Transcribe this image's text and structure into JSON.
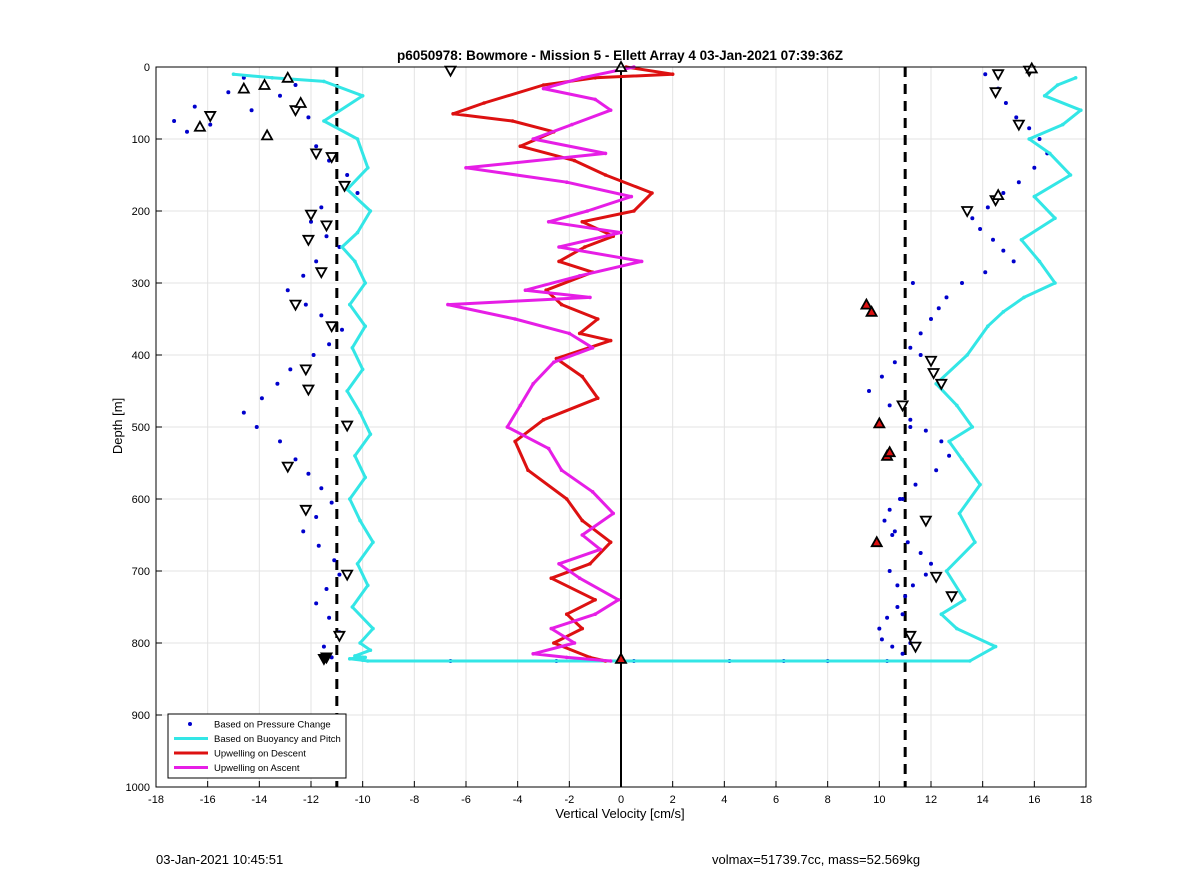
{
  "chart_data": {
    "type": "scatter",
    "title": "p6050978: Bowmore - Mission 5 - Ellett Array 4 03-Jan-2021 07:39:36Z",
    "xlabel": "Vertical Velocity [cm/s]",
    "ylabel": "Depth [m]",
    "xlim": [
      -18,
      18
    ],
    "ylim": [
      0,
      1000
    ],
    "y_reversed": true,
    "grid": true,
    "xticks": [
      -18,
      -16,
      -14,
      -12,
      -10,
      -8,
      -6,
      -4,
      -2,
      0,
      2,
      4,
      6,
      8,
      10,
      12,
      14,
      16,
      18
    ],
    "yticks": [
      0,
      100,
      200,
      300,
      400,
      500,
      600,
      700,
      800,
      900,
      1000
    ],
    "legend_position": "bottom-left",
    "reference_lines": {
      "vertical_dashed": [
        -11,
        11
      ],
      "vertical_solid": [
        0
      ]
    },
    "series": [
      {
        "name": "Based on Pressure Change",
        "style": "dots",
        "color": "#0000cc",
        "x": [
          -14.6,
          -15.2,
          -16.5,
          -17.3,
          -16.8,
          -15.9,
          -14.3,
          -13.2,
          -12.6,
          -12.1,
          -11.8,
          -11.3,
          -10.6,
          -10.2,
          -11.6,
          -12.0,
          -11.4,
          -10.9,
          -11.8,
          -12.3,
          -12.9,
          -12.2,
          -11.6,
          -10.8,
          -11.3,
          -11.9,
          -12.8,
          -13.3,
          -13.9,
          -14.6,
          -14.1,
          -13.2,
          -12.6,
          -12.1,
          -11.6,
          -11.2,
          -11.8,
          -12.3,
          -11.7,
          -11.1,
          -10.9,
          -11.4,
          -11.8,
          -11.3,
          -10.9,
          -11.5,
          -11.2,
          14.1,
          14.6,
          14.9,
          15.3,
          15.8,
          16.2,
          16.5,
          16.0,
          15.4,
          14.8,
          14.2,
          13.6,
          13.9,
          14.4,
          14.8,
          15.2,
          14.1,
          13.2,
          12.6,
          12.3,
          12.0,
          11.6,
          11.2,
          10.6,
          10.1,
          9.6,
          10.4,
          11.2,
          11.8,
          12.4,
          12.7,
          12.2,
          11.4,
          10.9,
          10.4,
          10.2,
          10.6,
          11.1,
          11.6,
          12.0,
          11.8,
          11.3,
          11.0,
          10.7,
          10.3,
          10.0,
          10.1,
          10.5,
          10.9,
          11.3,
          11.6,
          11.2,
          10.8,
          10.5,
          10.4,
          10.7,
          10.9,
          11.2,
          -6.6,
          -2.5,
          0.5,
          4.2,
          6.3,
          8.0,
          10.3
        ],
        "y": [
          15,
          35,
          55,
          75,
          90,
          80,
          60,
          40,
          25,
          70,
          110,
          130,
          150,
          175,
          195,
          215,
          235,
          250,
          270,
          290,
          310,
          330,
          345,
          365,
          385,
          400,
          420,
          440,
          460,
          480,
          500,
          520,
          545,
          565,
          585,
          605,
          625,
          645,
          665,
          685,
          705,
          725,
          745,
          765,
          785,
          805,
          820,
          10,
          30,
          50,
          70,
          85,
          100,
          120,
          140,
          160,
          175,
          195,
          210,
          225,
          240,
          255,
          270,
          285,
          300,
          320,
          335,
          350,
          370,
          390,
          410,
          430,
          450,
          470,
          490,
          505,
          520,
          540,
          560,
          580,
          600,
          615,
          630,
          645,
          660,
          675,
          690,
          705,
          720,
          735,
          750,
          765,
          780,
          795,
          805,
          815,
          300,
          400,
          500,
          600,
          650,
          700,
          720,
          760,
          800,
          825,
          825,
          825,
          825,
          825,
          825,
          825
        ]
      },
      {
        "name": "Based on Buoyancy and Pitch",
        "style": "line",
        "color": "#33e6e6",
        "x": [
          -15.0,
          -13.5,
          -11.5,
          -10.0,
          -11.5,
          -10.2,
          -9.8,
          -10.6,
          -9.7,
          -10.2,
          -10.8,
          -10.3,
          -9.9,
          -10.5,
          -9.9,
          -10.4,
          -10.0,
          -10.6,
          -10.1,
          -9.7,
          -10.3,
          -9.9,
          -10.5,
          -10.1,
          -9.6,
          -10.2,
          -9.8,
          -10.4,
          -9.6,
          -10.1,
          -9.7,
          -10.3,
          -9.9,
          -10.5,
          -10.0,
          -9.8,
          13.5,
          14.5,
          13.0,
          12.4,
          13.3,
          12.6,
          13.7,
          13.1,
          13.9,
          13.2,
          12.7,
          13.6,
          13.0,
          12.2,
          13.4,
          14.2,
          14.8,
          15.6,
          16.8,
          16.2,
          15.5,
          16.8,
          16.0,
          17.4,
          16.6,
          15.8,
          17.1,
          17.8,
          16.4,
          16.9,
          17.6
        ],
        "y": [
          10,
          15,
          20,
          40,
          75,
          100,
          140,
          170,
          200,
          230,
          250,
          270,
          300,
          330,
          360,
          390,
          420,
          450,
          480,
          510,
          540,
          570,
          600,
          630,
          660,
          690,
          720,
          750,
          780,
          800,
          810,
          818,
          820,
          822,
          824,
          825,
          825,
          805,
          780,
          760,
          740,
          700,
          660,
          620,
          580,
          545,
          520,
          500,
          470,
          440,
          400,
          360,
          340,
          320,
          300,
          270,
          240,
          210,
          180,
          150,
          120,
          100,
          80,
          60,
          40,
          25,
          15
        ]
      },
      {
        "name": "Upwelling on Descent",
        "style": "line",
        "color": "#dd1111",
        "x": [
          0.2,
          2.0,
          -1.0,
          -3.0,
          -5.3,
          -6.5,
          -4.2,
          -2.6,
          -3.9,
          -1.8,
          -0.6,
          1.2,
          0.5,
          -1.5,
          -0.3,
          -1.4,
          -2.4,
          -1.1,
          -2.9,
          -2.3,
          -0.9,
          -1.6,
          -0.4,
          -2.5,
          -1.5,
          -0.9,
          -3.0,
          -4.1,
          -3.6,
          -2.1,
          -1.5,
          -0.4,
          -1.2,
          -2.7,
          -1.0,
          -2.1,
          -1.5,
          -2.6,
          -1.2,
          -0.6
        ],
        "y": [
          0,
          10,
          15,
          25,
          50,
          65,
          75,
          90,
          110,
          130,
          150,
          175,
          200,
          215,
          235,
          250,
          270,
          285,
          310,
          330,
          350,
          370,
          380,
          405,
          430,
          460,
          490,
          520,
          560,
          600,
          630,
          660,
          690,
          710,
          740,
          760,
          780,
          800,
          820,
          825
        ]
      },
      {
        "name": "Upwelling on Ascent",
        "style": "line",
        "color": "#e61ee6",
        "x": [
          0.5,
          -1.5,
          -3.0,
          -1.0,
          -0.4,
          -1.9,
          -3.4,
          -0.6,
          -6.0,
          -2.1,
          0.4,
          -1.3,
          -2.8,
          0.0,
          -2.4,
          0.8,
          -1.6,
          -3.7,
          -1.2,
          -6.7,
          -4.1,
          -2.0,
          -1.1,
          -2.6,
          -3.4,
          -3.9,
          -4.4,
          -2.8,
          -2.3,
          -1.1,
          -0.3,
          -1.5,
          -0.8,
          -2.4,
          -1.6,
          -0.1,
          -1.0,
          -2.7,
          -1.8,
          -3.4,
          -2.1,
          -0.4
        ],
        "y": [
          0,
          15,
          30,
          45,
          60,
          80,
          100,
          120,
          140,
          160,
          180,
          200,
          215,
          230,
          250,
          270,
          290,
          310,
          320,
          330,
          350,
          370,
          390,
          410,
          440,
          470,
          500,
          530,
          560,
          590,
          620,
          650,
          670,
          690,
          710,
          740,
          760,
          780,
          800,
          815,
          820,
          825
        ]
      }
    ],
    "markers": {
      "down_triangles_open": [
        [
          -6.6,
          5
        ],
        [
          -15.9,
          68
        ],
        [
          -12.6,
          60
        ],
        [
          -11.8,
          120
        ],
        [
          -11.2,
          125
        ],
        [
          -10.7,
          165
        ],
        [
          -12.0,
          205
        ],
        [
          -11.4,
          220
        ],
        [
          -12.1,
          240
        ],
        [
          -11.6,
          285
        ],
        [
          -12.6,
          330
        ],
        [
          -11.2,
          360
        ],
        [
          -12.2,
          420
        ],
        [
          -12.1,
          448
        ],
        [
          -10.6,
          498
        ],
        [
          -12.9,
          555
        ],
        [
          -12.2,
          615
        ],
        [
          -10.6,
          705
        ],
        [
          -10.9,
          790
        ],
        [
          14.6,
          10
        ],
        [
          15.8,
          5
        ],
        [
          14.5,
          35
        ],
        [
          15.4,
          80
        ],
        [
          14.5,
          185
        ],
        [
          13.4,
          200
        ],
        [
          12.0,
          408
        ],
        [
          12.1,
          425
        ],
        [
          12.4,
          440
        ],
        [
          12.2,
          708
        ],
        [
          12.8,
          735
        ],
        [
          11.4,
          805
        ],
        [
          11.2,
          790
        ],
        [
          11.8,
          630
        ],
        [
          10.9,
          470
        ]
      ],
      "up_triangles_open": [
        [
          -12.9,
          15
        ],
        [
          -13.8,
          25
        ],
        [
          -14.6,
          30
        ],
        [
          -12.4,
          50
        ],
        [
          -16.3,
          83
        ],
        [
          -13.7,
          95
        ],
        [
          0.0,
          0
        ],
        [
          15.9,
          2
        ],
        [
          14.6,
          178
        ]
      ],
      "up_triangles_red": [
        [
          9.5,
          330
        ],
        [
          9.7,
          340
        ],
        [
          10.0,
          495
        ],
        [
          10.3,
          540
        ],
        [
          10.4,
          535
        ],
        [
          9.9,
          660
        ],
        [
          0.0,
          822
        ]
      ],
      "down_triangles_filled": [
        [
          -11.4,
          820
        ],
        [
          -11.5,
          822
        ]
      ]
    }
  },
  "footer": {
    "timestamp": "03-Jan-2021 10:45:51",
    "info": "volmax=51739.7cc, mass=52.569kg"
  },
  "colors": {
    "pressure": "#0000cc",
    "buoyancy": "#33e6e6",
    "descent": "#dd1111",
    "ascent": "#e61ee6"
  }
}
